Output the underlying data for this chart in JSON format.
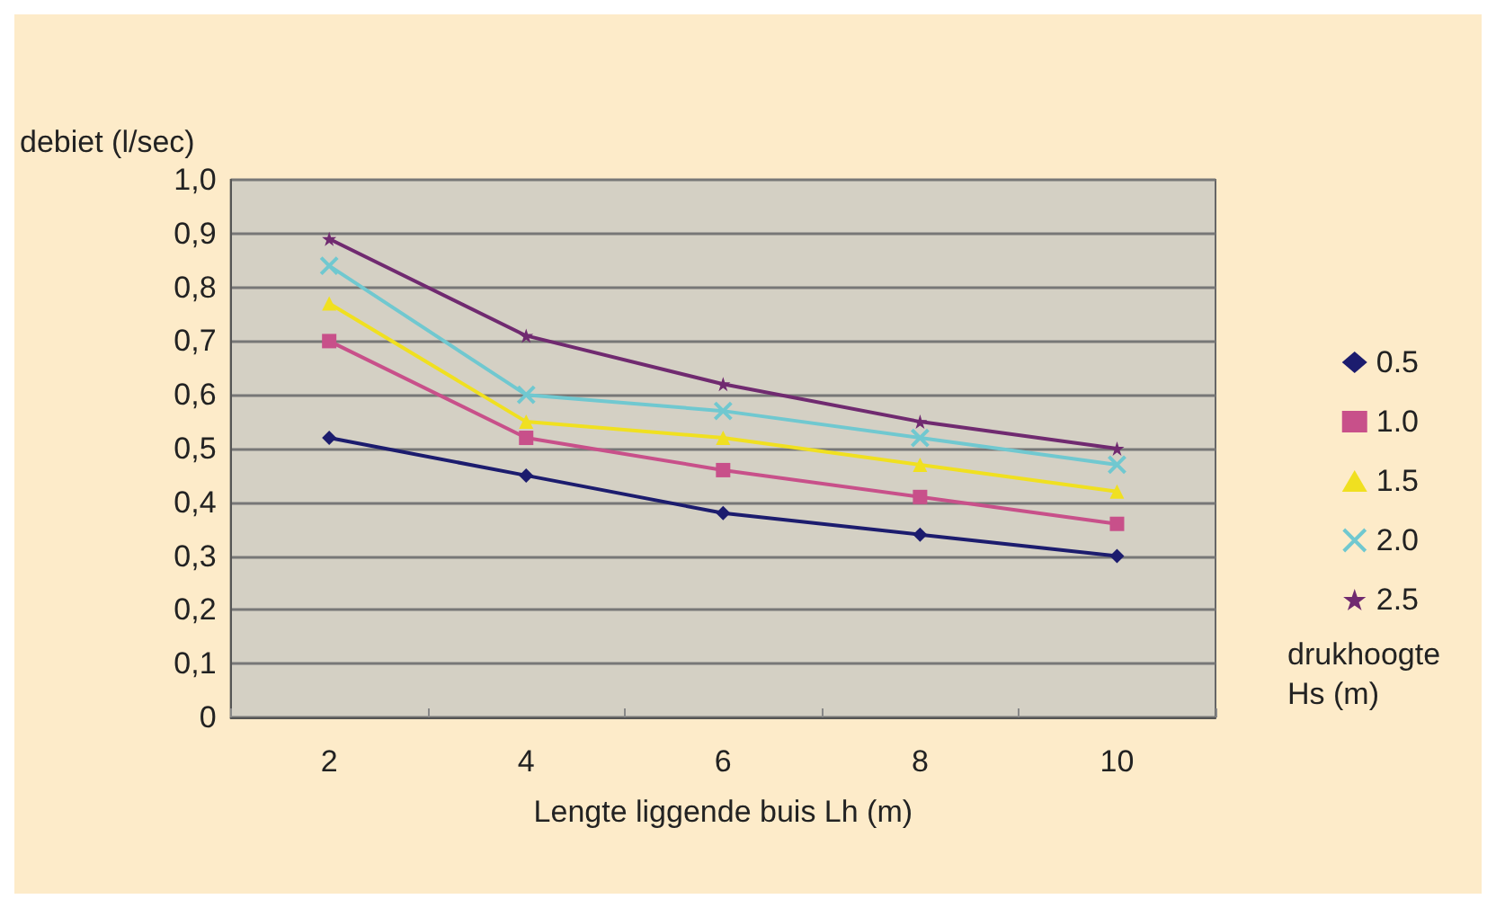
{
  "chart_data": {
    "type": "line",
    "xlabel": "Lengte liggende buis Lh (m)",
    "ylabel": "debiet (l/sec)",
    "legend_title": "drukhoogte Hs (m)",
    "categories": [
      "2",
      "4",
      "6",
      "8",
      "10"
    ],
    "series": [
      {
        "name": "0.5",
        "color": "#1c1c6e",
        "marker": "diamond",
        "values": [
          0.52,
          0.45,
          0.38,
          0.34,
          0.3
        ]
      },
      {
        "name": "1.0",
        "color": "#c8508a",
        "marker": "square",
        "values": [
          0.7,
          0.52,
          0.46,
          0.41,
          0.36
        ]
      },
      {
        "name": "1.5",
        "color": "#f0e020",
        "marker": "triangle",
        "values": [
          0.77,
          0.55,
          0.52,
          0.47,
          0.42
        ]
      },
      {
        "name": "2.0",
        "color": "#70c8d0",
        "marker": "cross",
        "values": [
          0.84,
          0.6,
          0.57,
          0.52,
          0.47
        ]
      },
      {
        "name": "2.5",
        "color": "#702a70",
        "marker": "star",
        "values": [
          0.89,
          0.71,
          0.62,
          0.55,
          0.5
        ]
      }
    ],
    "ylim": [
      0,
      1
    ],
    "yticks": [
      {
        "value": 0,
        "label": "0"
      },
      {
        "value": 0.1,
        "label": "0,1"
      },
      {
        "value": 0.2,
        "label": "0,2"
      },
      {
        "value": 0.3,
        "label": "0,3"
      },
      {
        "value": 0.4,
        "label": "0,4"
      },
      {
        "value": 0.5,
        "label": "0,5"
      },
      {
        "value": 0.6,
        "label": "0,6"
      },
      {
        "value": 0.7,
        "label": "0,7"
      },
      {
        "value": 0.8,
        "label": "0,8"
      },
      {
        "value": 0.9,
        "label": "0,9"
      },
      {
        "value": 1,
        "label": "1,0"
      }
    ],
    "grid": "y",
    "legend": "right",
    "line_style": "solid"
  }
}
